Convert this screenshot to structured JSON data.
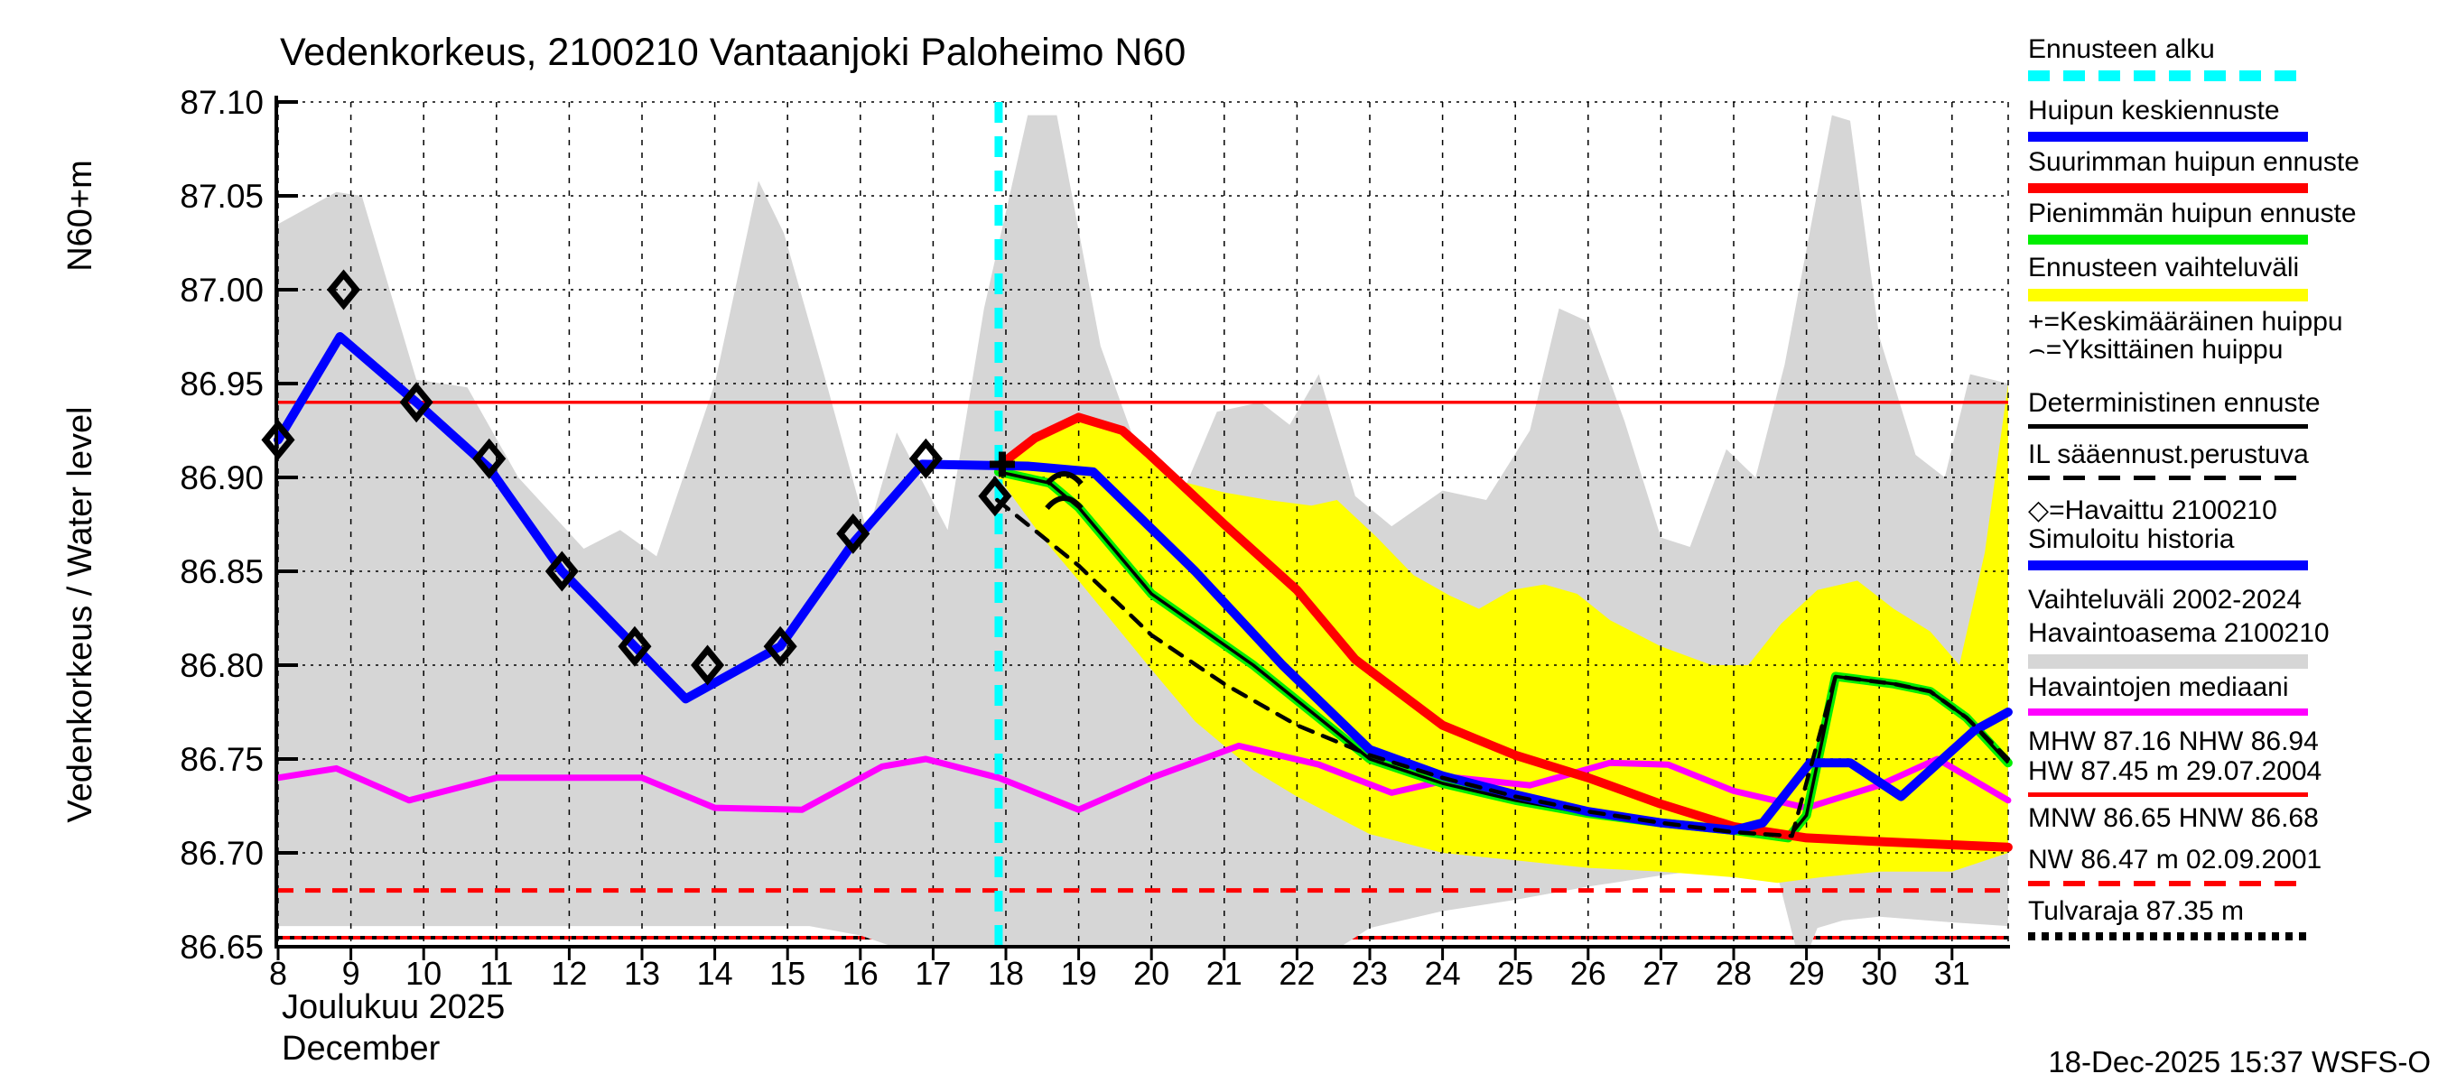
{
  "title": "Vedenkorkeus, 2100210 Vantaanjoki Paloheimo N60",
  "footer": {
    "timestamp": "18-Dec-2025 15:37 WSFS-O"
  },
  "y_axis": {
    "unit_label": "N60+m",
    "axis_label": "Vedenkorkeus / Water level",
    "tick_labels": [
      "87.10",
      "87.05",
      "87.00",
      "86.95",
      "86.90",
      "86.85",
      "86.80",
      "86.75",
      "86.70",
      "86.65"
    ]
  },
  "x_axis": {
    "day_labels": [
      "8",
      "9",
      "10",
      "11",
      "12",
      "13",
      "14",
      "15",
      "16",
      "17",
      "18",
      "19",
      "20",
      "21",
      "22",
      "23",
      "24",
      "25",
      "26",
      "27",
      "28",
      "29",
      "30",
      "31"
    ],
    "month_fi": "Joulukuu  2025",
    "month_en": "December"
  },
  "colors": {
    "forecast_median": "#0000ff",
    "forecast_max": "#ff0000",
    "forecast_min": "#00ee00",
    "forecast_range": "#ffff00",
    "history_range": "#d6d6d6",
    "median_obs": "#ff00ff",
    "forecast_start": "#00ffff",
    "deterministic": "#000000"
  },
  "legend": {
    "items": [
      {
        "label": "Ennusteen alku",
        "sample": "dashed",
        "color": "#00ffff",
        "thickness": 12
      },
      {
        "label": "Huipun keskiennuste",
        "sample": "solid",
        "color": "#0000ff",
        "thickness": 11
      },
      {
        "label": "Suurimman huipun ennuste",
        "sample": "solid",
        "color": "#ff0000",
        "thickness": 11
      },
      {
        "label": "Pienimmän huipun ennuste",
        "sample": "solid",
        "color": "#00ee00",
        "thickness": 11
      },
      {
        "label": "Ennusteen vaihteluväli",
        "sample": "solid",
        "color": "#ffff00",
        "thickness": 14
      },
      {
        "label": "+=Keskimääräinen huippu",
        "sample": "none",
        "color": "",
        "thickness": 0
      },
      {
        "label": "⌢=Yksittäinen huippu",
        "sample": "none",
        "color": "",
        "thickness": 0
      },
      {
        "label": "Deterministinen ennuste",
        "sample": "solid",
        "color": "#000000",
        "thickness": 5
      },
      {
        "label": "IL sääennust.perustuva",
        "sample": "dashed",
        "color": "#000000",
        "thickness": 5
      },
      {
        "label": "◇=Havaittu 2100210",
        "sample": "none",
        "color": "",
        "thickness": 0
      },
      {
        "label": "Simuloitu historia",
        "sample": "solid",
        "color": "#0000ff",
        "thickness": 11
      },
      {
        "label": "Vaihteluväli 2002-2024",
        "sample": "none",
        "color": "",
        "thickness": 0
      },
      {
        "label": "Havaintoasema 2100210",
        "sample": "solid",
        "color": "#d6d6d6",
        "thickness": 16
      },
      {
        "label": "Havaintojen mediaani",
        "sample": "solid",
        "color": "#ff00ff",
        "thickness": 8
      },
      {
        "label": "MHW  87.16 NHW  86.94",
        "sample": "none",
        "color": "",
        "thickness": 0
      },
      {
        "label": "HW  87.45 m 29.07.2004",
        "sample": "solid",
        "color": "#ff0000",
        "thickness": 5
      },
      {
        "label": "MNW  86.65 HNW  86.68",
        "sample": "none",
        "color": "",
        "thickness": 0
      },
      {
        "label": "NW  86.47 m 02.09.2001",
        "sample": "dashed",
        "color": "#ff0000",
        "thickness": 6
      },
      {
        "label": "Tulvaraja 87.35 m",
        "sample": "dotted",
        "color": "#000000",
        "thickness": 9
      }
    ]
  },
  "chart_data": {
    "type": "line",
    "title": "Vedenkorkeus, 2100210 Vantaanjoki Paloheimo N60",
    "xlabel": "Joulukuu 2025 / December (day of month)",
    "ylabel": "Vedenkorkeus / Water level, N60+m",
    "x_range": [
      8,
      31.77
    ],
    "ylim": [
      86.65,
      87.1
    ],
    "grid": true,
    "legend_position": "right",
    "forecast_start_day": 17.9,
    "reference_levels": {
      "NHW": 86.94,
      "HNW_dashed": 86.68,
      "MNW_bottom": 86.655,
      "MHW": 87.16,
      "HW": 87.45,
      "NW": 86.47,
      "Tulvaraja": 87.35
    },
    "observations": {
      "name": "havaittu-2100210",
      "points": [
        [
          8,
          86.92
        ],
        [
          8.9,
          87.0
        ],
        [
          9.9,
          86.94
        ],
        [
          10.9,
          86.91
        ],
        [
          11.9,
          86.85
        ],
        [
          12.9,
          86.81
        ],
        [
          13.9,
          86.8
        ],
        [
          14.9,
          86.81
        ],
        [
          15.9,
          86.87
        ],
        [
          16.9,
          86.91
        ],
        [
          17.85,
          86.89
        ]
      ]
    },
    "symbols": {
      "average_peak_plus": [
        [
          17.95,
          86.907
        ]
      ],
      "single_peak_arcs": [
        [
          18.8,
          86.9
        ],
        [
          18.8,
          86.887
        ]
      ]
    },
    "bands": [
      {
        "name": "vaihteluvali-2002-2024-havaintoasema",
        "color": "#d6d6d6",
        "upper": [
          [
            8,
            87.035
          ],
          [
            8.8,
            87.052
          ],
          [
            9.15,
            87.05
          ],
          [
            9.9,
            86.952
          ],
          [
            10.6,
            86.948
          ],
          [
            11.3,
            86.9
          ],
          [
            12.2,
            86.862
          ],
          [
            12.7,
            86.872
          ],
          [
            13.2,
            86.858
          ],
          [
            14.0,
            86.95
          ],
          [
            14.6,
            87.058
          ],
          [
            14.95,
            87.03
          ],
          [
            15.5,
            86.955
          ],
          [
            16.1,
            86.87
          ],
          [
            16.5,
            86.924
          ],
          [
            17.2,
            86.872
          ],
          [
            17.7,
            86.99
          ],
          [
            18.3,
            87.093
          ],
          [
            18.7,
            87.093
          ],
          [
            19.3,
            86.97
          ],
          [
            19.9,
            86.905
          ],
          [
            20.3,
            86.88
          ],
          [
            20.9,
            86.935
          ],
          [
            21.5,
            86.94
          ],
          [
            21.9,
            86.928
          ],
          [
            22.3,
            86.955
          ],
          [
            22.8,
            86.89
          ],
          [
            23.3,
            86.874
          ],
          [
            24.0,
            86.893
          ],
          [
            24.6,
            86.888
          ],
          [
            25.2,
            86.925
          ],
          [
            25.6,
            86.99
          ],
          [
            26.0,
            86.983
          ],
          [
            26.5,
            86.93
          ],
          [
            27.0,
            86.868
          ],
          [
            27.4,
            86.863
          ],
          [
            27.9,
            86.915
          ],
          [
            28.3,
            86.9
          ],
          [
            28.7,
            86.96
          ],
          [
            29.35,
            87.093
          ],
          [
            29.6,
            87.09
          ],
          [
            30.0,
            86.975
          ],
          [
            30.5,
            86.912
          ],
          [
            30.9,
            86.9
          ],
          [
            31.25,
            86.955
          ],
          [
            31.77,
            86.95
          ]
        ],
        "lower": [
          [
            8,
            86.661
          ],
          [
            15.3,
            86.661
          ],
          [
            16.0,
            86.656
          ],
          [
            16.45,
            86.648
          ],
          [
            16.6,
            86.63
          ],
          [
            22.6,
            86.63
          ],
          [
            23.0,
            86.66
          ],
          [
            24,
            86.669
          ],
          [
            25,
            86.675
          ],
          [
            26,
            86.682
          ],
          [
            27,
            86.688
          ],
          [
            28,
            86.693
          ],
          [
            28.55,
            86.696
          ],
          [
            28.85,
            86.64
          ],
          [
            29.05,
            86.64
          ],
          [
            29.15,
            86.66
          ],
          [
            29.5,
            86.664
          ],
          [
            30,
            86.666
          ],
          [
            31,
            86.663
          ],
          [
            31.77,
            86.661
          ]
        ]
      },
      {
        "name": "ennusteen-vaihteluvali",
        "color": "#ffff00",
        "upper": [
          [
            17.9,
            86.906
          ],
          [
            18.4,
            86.921
          ],
          [
            19,
            86.931
          ],
          [
            19.6,
            86.924
          ],
          [
            19.95,
            86.912
          ],
          [
            20.4,
            86.898
          ],
          [
            21,
            86.892
          ],
          [
            21.6,
            86.888
          ],
          [
            22.2,
            86.885
          ],
          [
            22.55,
            86.888
          ],
          [
            23.1,
            86.868
          ],
          [
            23.6,
            86.848
          ],
          [
            24.1,
            86.837
          ],
          [
            24.5,
            86.83
          ],
          [
            24.95,
            86.84
          ],
          [
            25.4,
            86.843
          ],
          [
            25.85,
            86.838
          ],
          [
            26.3,
            86.824
          ],
          [
            27,
            86.81
          ],
          [
            27.7,
            86.8
          ],
          [
            28.2,
            86.8
          ],
          [
            28.65,
            86.822
          ],
          [
            29.15,
            86.84
          ],
          [
            29.7,
            86.845
          ],
          [
            30.2,
            86.83
          ],
          [
            30.7,
            86.818
          ],
          [
            31.1,
            86.8
          ],
          [
            31.45,
            86.86
          ],
          [
            31.77,
            86.95
          ]
        ],
        "lower": [
          [
            17.9,
            86.9
          ],
          [
            18.5,
            86.868
          ],
          [
            19,
            86.845
          ],
          [
            19.95,
            86.8
          ],
          [
            20.6,
            86.77
          ],
          [
            21.4,
            86.744
          ],
          [
            22,
            86.73
          ],
          [
            23,
            86.71
          ],
          [
            24,
            86.7
          ],
          [
            25,
            86.696
          ],
          [
            26,
            86.692
          ],
          [
            27,
            86.69
          ],
          [
            28,
            86.687
          ],
          [
            28.6,
            86.684
          ],
          [
            29.2,
            86.687
          ],
          [
            30,
            86.69
          ],
          [
            31,
            86.69
          ],
          [
            31.77,
            86.7
          ]
        ]
      }
    ],
    "series": [
      {
        "name": "havaintojen-mediaani",
        "color": "#ff00ff",
        "width": 7,
        "points": [
          [
            8,
            86.74
          ],
          [
            8.8,
            86.745
          ],
          [
            9.8,
            86.728
          ],
          [
            11,
            86.74
          ],
          [
            13,
            86.74
          ],
          [
            14,
            86.724
          ],
          [
            15.2,
            86.723
          ],
          [
            16.3,
            86.746
          ],
          [
            16.9,
            86.75
          ],
          [
            17.9,
            86.74
          ],
          [
            19,
            86.723
          ],
          [
            20,
            86.74
          ],
          [
            21.2,
            86.757
          ],
          [
            22.3,
            86.747
          ],
          [
            23.3,
            86.732
          ],
          [
            24.2,
            86.74
          ],
          [
            25.2,
            86.736
          ],
          [
            26.3,
            86.748
          ],
          [
            27.1,
            86.747
          ],
          [
            28,
            86.733
          ],
          [
            29,
            86.724
          ],
          [
            30,
            86.736
          ],
          [
            30.8,
            86.75
          ],
          [
            31.77,
            86.728
          ]
        ]
      },
      {
        "name": "pienimman-huipun-ennuste",
        "color": "#00ee00",
        "width": 10,
        "core_color": "#000000",
        "core_name": "deterministinen-ennuste",
        "points": [
          [
            17.9,
            86.903
          ],
          [
            18.6,
            86.897
          ],
          [
            19,
            86.884
          ],
          [
            20,
            86.838
          ],
          [
            21.4,
            86.8
          ],
          [
            23,
            86.75
          ],
          [
            24,
            86.737
          ],
          [
            25,
            86.728
          ],
          [
            26,
            86.721
          ],
          [
            27,
            86.716
          ],
          [
            28,
            86.712
          ],
          [
            28.75,
            86.708
          ],
          [
            29.0,
            86.72
          ],
          [
            29.4,
            86.794
          ],
          [
            30.2,
            86.79
          ],
          [
            30.7,
            86.786
          ],
          [
            31.2,
            86.772
          ],
          [
            31.77,
            86.748
          ]
        ]
      },
      {
        "name": "suurimman-huipun-ennuste",
        "color": "#ff0000",
        "width": 10,
        "points": [
          [
            17.9,
            86.906
          ],
          [
            18.4,
            86.921
          ],
          [
            19,
            86.932
          ],
          [
            19.6,
            86.925
          ],
          [
            19.95,
            86.913
          ],
          [
            21,
            86.875
          ],
          [
            22,
            86.84
          ],
          [
            22.8,
            86.803
          ],
          [
            24,
            86.768
          ],
          [
            25,
            86.752
          ],
          [
            26,
            86.74
          ],
          [
            27,
            86.726
          ],
          [
            28,
            86.714
          ],
          [
            29,
            86.708
          ],
          [
            30,
            86.706
          ],
          [
            31.77,
            86.703
          ]
        ]
      },
      {
        "name": "simuloitu-historia-ja-huipun-keskiennuste",
        "color": "#0000ff",
        "width": 10,
        "points": [
          [
            8,
            86.92
          ],
          [
            8.85,
            86.975
          ],
          [
            9.9,
            86.94
          ],
          [
            10.9,
            86.905
          ],
          [
            11.9,
            86.85
          ],
          [
            12.9,
            86.81
          ],
          [
            13.6,
            86.782
          ],
          [
            14.9,
            86.81
          ],
          [
            15.9,
            86.865
          ],
          [
            16.85,
            86.907
          ],
          [
            18.3,
            86.906
          ],
          [
            19.2,
            86.903
          ],
          [
            20.6,
            86.85
          ],
          [
            21.8,
            86.8
          ],
          [
            23,
            86.755
          ],
          [
            24,
            86.741
          ],
          [
            25,
            86.731
          ],
          [
            26,
            86.722
          ],
          [
            27,
            86.716
          ],
          [
            28,
            86.712
          ],
          [
            28.4,
            86.716
          ],
          [
            29.05,
            86.748
          ],
          [
            29.6,
            86.748
          ],
          [
            30.3,
            86.73
          ],
          [
            31.3,
            86.765
          ],
          [
            31.77,
            86.775
          ]
        ]
      },
      {
        "name": "il-saaennusteeseen-perustuva",
        "color": "#000000",
        "width": 4.5,
        "dash": "16,12",
        "points": [
          [
            17.88,
            86.888
          ],
          [
            19,
            86.853
          ],
          [
            20,
            86.816
          ],
          [
            21,
            86.79
          ],
          [
            22,
            86.768
          ],
          [
            23,
            86.752
          ],
          [
            24,
            86.74
          ],
          [
            25,
            86.73
          ],
          [
            26,
            86.722
          ],
          [
            27,
            86.716
          ],
          [
            28,
            86.711
          ],
          [
            28.8,
            86.709
          ],
          [
            29.4,
            86.794
          ],
          [
            30.2,
            86.79
          ],
          [
            30.7,
            86.786
          ],
          [
            31.2,
            86.772
          ],
          [
            31.77,
            86.75
          ]
        ]
      }
    ]
  }
}
